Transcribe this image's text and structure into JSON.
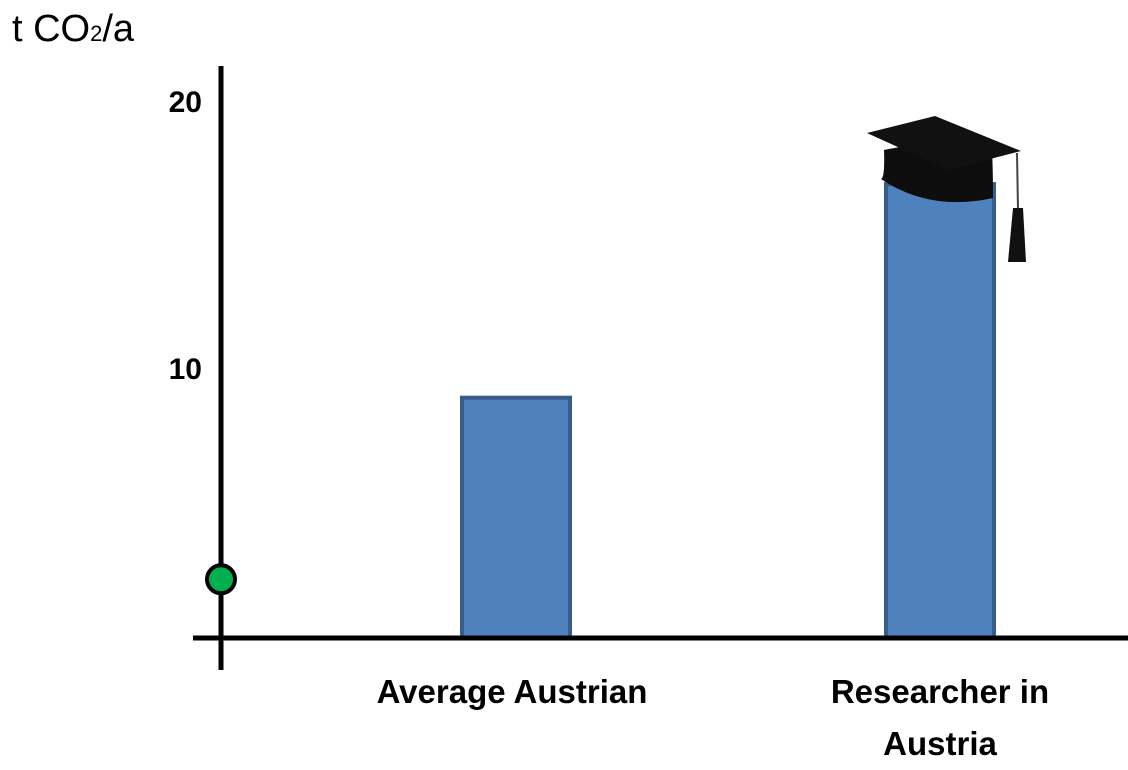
{
  "chart_data": {
    "type": "bar",
    "ylabel": {
      "prefix": "t CO",
      "subscript": "2",
      "suffix": "/a"
    },
    "xlabel": "",
    "title": "",
    "yticks": [
      "10",
      "20"
    ],
    "ylim": [
      0,
      21
    ],
    "categories": [
      "Average Austrian",
      "Researcher in Austria"
    ],
    "category_lines": [
      [
        "Average Austrian"
      ],
      [
        "Researcher in",
        "Austria"
      ]
    ],
    "values": [
      9,
      17
    ],
    "bar_color": "#4f81bd",
    "bar_edge_color": "#385d8a",
    "marker": {
      "value": 2.2,
      "color": "#00b050"
    },
    "decorations": [
      "graduation-cap-icon"
    ],
    "grid": false
  }
}
